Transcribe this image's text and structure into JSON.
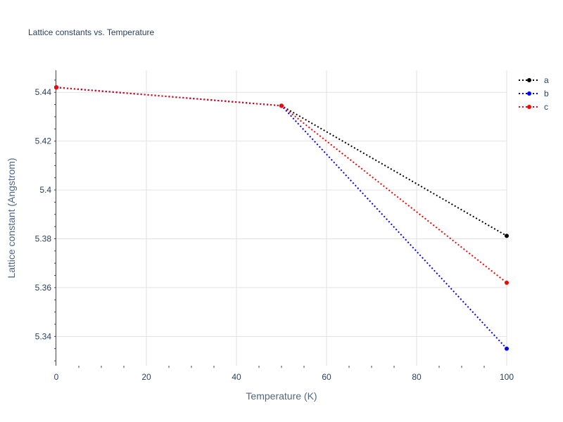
{
  "chart_data": {
    "type": "line",
    "title": "Lattice constants vs. Temperature",
    "xlabel": "Temperature (K)",
    "ylabel": "Lattice constant (Angstrom)",
    "xlim": [
      0,
      100
    ],
    "ylim": [
      5.328,
      5.449
    ],
    "x_ticks": [
      0,
      20,
      40,
      60,
      80,
      100
    ],
    "x_tick_labels": [
      "0",
      "20",
      "40",
      "60",
      "80",
      "100"
    ],
    "y_ticks": [
      5.34,
      5.36,
      5.38,
      5.4,
      5.42,
      5.44
    ],
    "y_tick_labels": [
      "5.34",
      "5.36",
      "5.38",
      "5.4",
      "5.42",
      "5.44"
    ],
    "grid": true,
    "legend_position": "top-right",
    "x": [
      0,
      50,
      100
    ],
    "series": [
      {
        "name": "a",
        "color": "#000000",
        "values": [
          5.442,
          5.4345,
          5.3812
        ]
      },
      {
        "name": "b",
        "color": "#0000ff",
        "values": [
          5.442,
          5.4345,
          5.335
        ]
      },
      {
        "name": "c",
        "color": "#ff0000",
        "values": [
          5.442,
          5.4345,
          5.362
        ]
      }
    ]
  }
}
